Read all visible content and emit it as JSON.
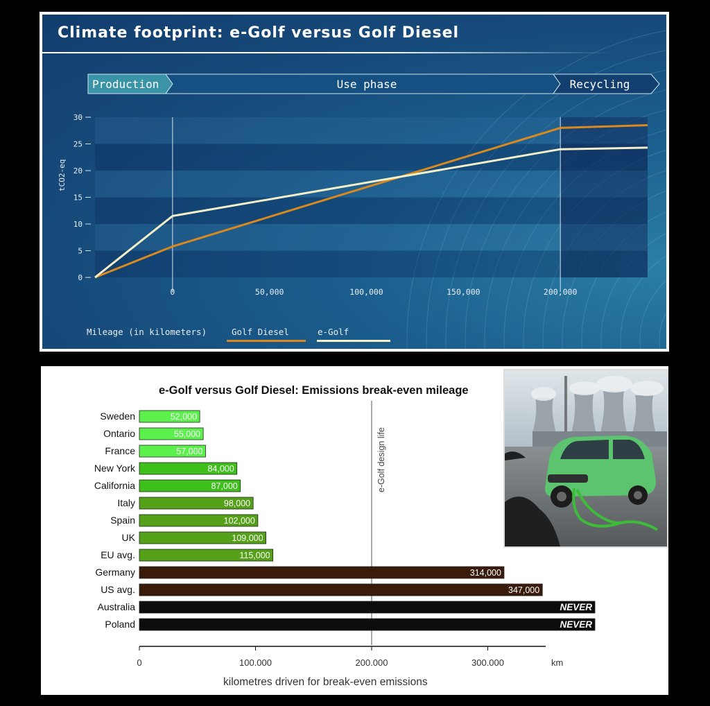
{
  "top_chart": {
    "title": "Climate footprint: e-Golf versus Golf Diesel",
    "phases": [
      "Production",
      "Use phase",
      "Recycling"
    ],
    "ylabel": "tCO2-eq",
    "xlabel": "Mileage (in kilometers)",
    "y_ticks": [
      "0",
      "5",
      "10",
      "15",
      "20",
      "25",
      "30"
    ],
    "x_ticks": [
      "0",
      "50,000",
      "100,000",
      "150,000",
      "200,000"
    ],
    "legend": {
      "diesel": "Golf Diesel",
      "egolf": "e-Golf"
    }
  },
  "bottom_chart": {
    "title": "e-Golf versus Golf Diesel:  Emissions break-even mileage",
    "xlabel": "kilometres driven for break-even emissions",
    "x_unit": "km",
    "x_ticks": [
      "0",
      "100.000",
      "200.000",
      "300.000"
    ],
    "design_life_label": "e-Golf design life",
    "never_label": "NEVER"
  },
  "chart_data": [
    {
      "type": "line",
      "title": "Climate footprint: e-Golf versus Golf Diesel",
      "xlabel": "Mileage (in kilometers)",
      "ylabel": "tCO2-eq",
      "ylim": [
        0,
        30
      ],
      "xlim": [
        -40000,
        245000
      ],
      "grid": true,
      "legend_position": "bottom",
      "series": [
        {
          "name": "Golf Diesel",
          "color": "#d9891e",
          "x": [
            -40000,
            0,
            200000,
            245000
          ],
          "y": [
            0,
            5.8,
            28,
            28.5
          ]
        },
        {
          "name": "e-Golf",
          "color": "#f3f0c8",
          "x": [
            -40000,
            0,
            200000,
            245000
          ],
          "y": [
            0,
            11.5,
            24,
            24.3
          ]
        }
      ]
    },
    {
      "type": "bar",
      "orientation": "horizontal",
      "title": "e-Golf versus Golf Diesel:  Emissions break-even mileage",
      "xlabel": "kilometres driven for break-even emissions",
      "xlim": [
        0,
        350000
      ],
      "reference_line": {
        "x": 200000,
        "label": "e-Golf design life"
      },
      "categories": [
        "Sweden",
        "Ontario",
        "France",
        "New York",
        "California",
        "Italy",
        "Spain",
        "UK",
        "EU avg.",
        "Germany",
        "US avg.",
        "Australia",
        "Poland"
      ],
      "values": [
        52000,
        55000,
        57000,
        84000,
        87000,
        98000,
        102000,
        109000,
        115000,
        314000,
        347000,
        null,
        null
      ],
      "value_labels": [
        "52,000",
        "55,000",
        "57,000",
        "84,000",
        "87,000",
        "98,000",
        "102,000",
        "109,000",
        "115,000",
        "314,000",
        "347,000",
        "NEVER",
        "NEVER"
      ],
      "colors": [
        "#5cf04c",
        "#5cf04c",
        "#5cf04c",
        "#3fbf1c",
        "#3fbf1c",
        "#54a018",
        "#54a018",
        "#54a018",
        "#54a018",
        "#3a1a0a",
        "#3a1a0a",
        "#0d0d0d",
        "#0d0d0d"
      ]
    }
  ]
}
